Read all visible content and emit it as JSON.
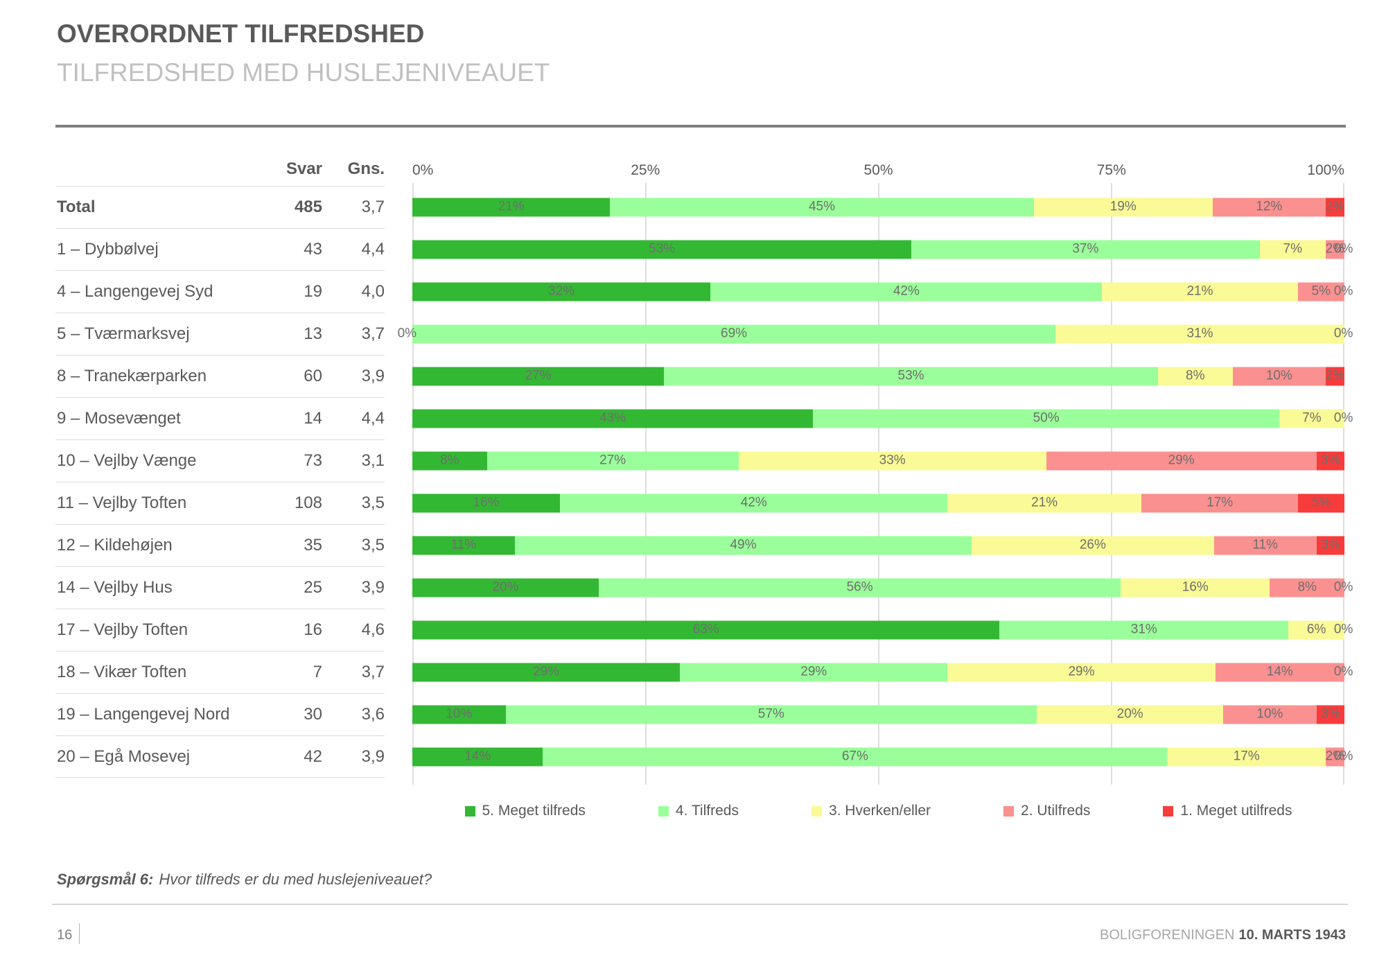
{
  "header": {
    "title": "OVERORDNET TILFREDSHED",
    "subtitle": "TILFREDSHED MED HUSLEJENIVEAUET"
  },
  "table": {
    "col_svar": "Svar",
    "col_gns": "Gns."
  },
  "chart_data": {
    "type": "bar",
    "stacked": true,
    "orientation": "horizontal",
    "xlim": [
      0,
      100
    ],
    "x_ticks": [
      "0%",
      "25%",
      "50%",
      "75%",
      "100%"
    ],
    "legend_position": "bottom",
    "series_names": [
      "5. Meget tilfreds",
      "4. Tilfreds",
      "3. Hverken/eller",
      "2. Utilfreds",
      "1. Meget utilfreds"
    ],
    "series_colors": [
      "#33b833",
      "#9aff9a",
      "#fafa96",
      "#fb9090",
      "#f83b3b"
    ],
    "rows": [
      {
        "label": "Total",
        "svar": "485",
        "gns": "3,7",
        "values": [
          21,
          45,
          19,
          12,
          2
        ],
        "bold": true
      },
      {
        "label": "1 – Dybbølvej",
        "svar": "43",
        "gns": "4,4",
        "values": [
          53,
          37,
          7,
          2,
          0
        ]
      },
      {
        "label": "4 – Langengevej Syd",
        "svar": "19",
        "gns": "4,0",
        "values": [
          32,
          42,
          21,
          5,
          0
        ]
      },
      {
        "label": "5 – Tværmarksvej",
        "svar": "13",
        "gns": "3,7",
        "values": [
          0,
          69,
          31,
          0,
          0
        ]
      },
      {
        "label": "8 – Tranekærparken",
        "svar": "60",
        "gns": "3,9",
        "values": [
          27,
          53,
          8,
          10,
          2
        ]
      },
      {
        "label": "9 – Mosevænget",
        "svar": "14",
        "gns": "4,4",
        "values": [
          43,
          50,
          7,
          0,
          0
        ]
      },
      {
        "label": "10 – Vejlby Vænge",
        "svar": "73",
        "gns": "3,1",
        "values": [
          8,
          27,
          33,
          29,
          3
        ]
      },
      {
        "label": "11 – Vejlby Toften",
        "svar": "108",
        "gns": "3,5",
        "values": [
          16,
          42,
          21,
          17,
          5
        ]
      },
      {
        "label": "12 – Kildehøjen",
        "svar": "35",
        "gns": "3,5",
        "values": [
          11,
          49,
          26,
          11,
          3
        ]
      },
      {
        "label": "14 – Vejlby Hus",
        "svar": "25",
        "gns": "3,9",
        "values": [
          20,
          56,
          16,
          8,
          0
        ]
      },
      {
        "label": "17 – Vejlby Toften",
        "svar": "16",
        "gns": "4,6",
        "values": [
          63,
          31,
          6,
          0,
          0
        ]
      },
      {
        "label": "18 – Vikær Toften",
        "svar": "7",
        "gns": "3,7",
        "values": [
          29,
          29,
          29,
          14,
          0
        ]
      },
      {
        "label": "19 – Langengevej Nord",
        "svar": "30",
        "gns": "3,6",
        "values": [
          10,
          57,
          20,
          10,
          3
        ]
      },
      {
        "label": "20 – Egå Mosevej",
        "svar": "42",
        "gns": "3,9",
        "values": [
          14,
          67,
          17,
          2,
          0
        ]
      }
    ]
  },
  "question": {
    "prefix": "Spørgsmål 6:",
    "text": "Hvor tilfreds er du med huslejeniveauet?"
  },
  "footer": {
    "page": "16",
    "org": "BOLIGFORENINGEN",
    "date": "10. MARTS 1943"
  }
}
